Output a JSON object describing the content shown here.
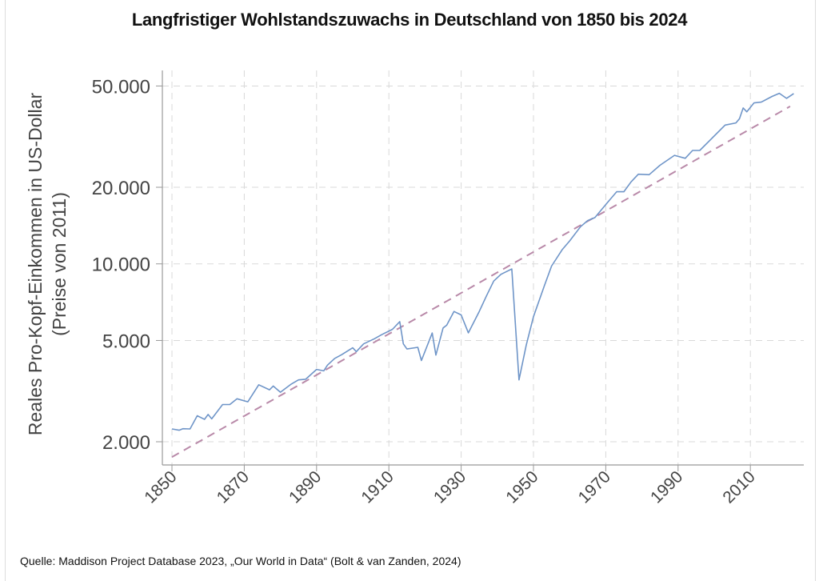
{
  "chart_data": {
    "type": "line",
    "title": "Langfristiger Wohlstandszuwachs in Deutschland von 1850 bis 2024",
    "ylabel": [
      "Reales Pro-Kopf-Einkommen in US-Dollar",
      "(Preise von 2011)"
    ],
    "xlabel": "",
    "yscale": "log",
    "ylim": [
      1650,
      56000
    ],
    "xlim": [
      1847,
      2024
    ],
    "yticks": [
      2000,
      5000,
      10000,
      20000,
      50000
    ],
    "ytick_labels": [
      "2.000",
      "5.000",
      "10.000",
      "20.000",
      "50.000"
    ],
    "xticks": [
      1850,
      1870,
      1890,
      1910,
      1930,
      1950,
      1970,
      1990,
      2010
    ],
    "xtick_labels": [
      "1850",
      "1870",
      "1890",
      "1910",
      "1930",
      "1950",
      "1970",
      "1990",
      "2010"
    ],
    "grid": true,
    "series": [
      {
        "name": "Reales Pro-Kopf-Einkommen",
        "color": "#6f95c8",
        "style": "solid",
        "points": [
          [
            1850,
            2245
          ],
          [
            1852,
            2220
          ],
          [
            1853,
            2250
          ],
          [
            1855,
            2245
          ],
          [
            1857,
            2530
          ],
          [
            1859,
            2450
          ],
          [
            1860,
            2560
          ],
          [
            1861,
            2460
          ],
          [
            1864,
            2800
          ],
          [
            1866,
            2800
          ],
          [
            1868,
            2950
          ],
          [
            1871,
            2870
          ],
          [
            1874,
            3350
          ],
          [
            1877,
            3200
          ],
          [
            1878,
            3310
          ],
          [
            1880,
            3130
          ],
          [
            1883,
            3370
          ],
          [
            1885,
            3500
          ],
          [
            1887,
            3520
          ],
          [
            1890,
            3850
          ],
          [
            1892,
            3800
          ],
          [
            1893,
            4000
          ],
          [
            1895,
            4250
          ],
          [
            1897,
            4400
          ],
          [
            1900,
            4680
          ],
          [
            1901,
            4520
          ],
          [
            1903,
            4850
          ],
          [
            1906,
            5080
          ],
          [
            1908,
            5270
          ],
          [
            1911,
            5530
          ],
          [
            1913,
            5930
          ],
          [
            1914,
            4850
          ],
          [
            1915,
            4630
          ],
          [
            1918,
            4700
          ],
          [
            1919,
            4170
          ],
          [
            1922,
            5350
          ],
          [
            1923,
            4380
          ],
          [
            1925,
            5600
          ],
          [
            1926,
            5740
          ],
          [
            1928,
            6500
          ],
          [
            1930,
            6300
          ],
          [
            1932,
            5360
          ],
          [
            1935,
            6500
          ],
          [
            1937,
            7480
          ],
          [
            1939,
            8560
          ],
          [
            1941,
            9100
          ],
          [
            1944,
            9550
          ],
          [
            1946,
            3500
          ],
          [
            1948,
            4800
          ],
          [
            1950,
            6200
          ],
          [
            1953,
            8200
          ],
          [
            1955,
            9800
          ],
          [
            1958,
            11400
          ],
          [
            1960,
            12300
          ],
          [
            1963,
            14000
          ],
          [
            1965,
            14800
          ],
          [
            1967,
            15200
          ],
          [
            1970,
            17100
          ],
          [
            1973,
            19200
          ],
          [
            1975,
            19200
          ],
          [
            1977,
            21000
          ],
          [
            1979,
            22500
          ],
          [
            1982,
            22400
          ],
          [
            1985,
            24400
          ],
          [
            1989,
            26700
          ],
          [
            1992,
            26000
          ],
          [
            1994,
            27900
          ],
          [
            1996,
            27900
          ],
          [
            1999,
            30800
          ],
          [
            2003,
            35100
          ],
          [
            2006,
            35800
          ],
          [
            2007,
            37200
          ],
          [
            2008,
            41000
          ],
          [
            2009,
            39600
          ],
          [
            2011,
            42900
          ],
          [
            2013,
            43200
          ],
          [
            2016,
            45500
          ],
          [
            2018,
            46800
          ],
          [
            2020,
            44700
          ],
          [
            2022,
            46700
          ]
        ]
      },
      {
        "name": "Trend",
        "color": "#b98aa9",
        "style": "dashed",
        "points": [
          [
            1850,
            1742
          ],
          [
            2021,
            41600
          ]
        ]
      }
    ]
  },
  "source": "Quelle: Maddison Project Database 2023, „Our World in Data“ (Bolt & van Zanden, 2024)"
}
